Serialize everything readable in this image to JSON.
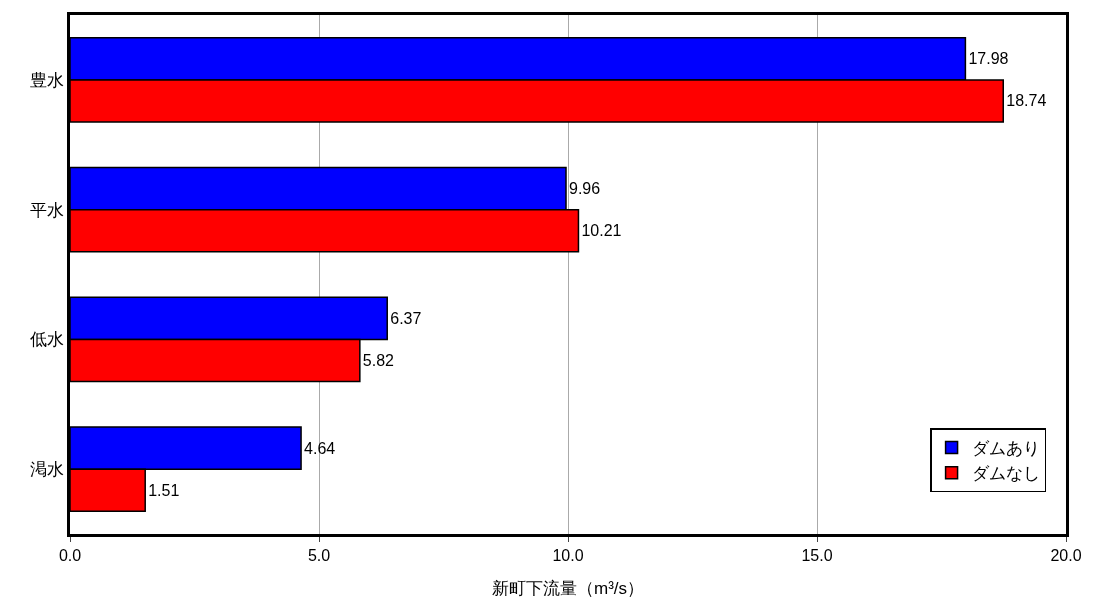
{
  "chart_data": {
    "type": "bar",
    "orientation": "horizontal",
    "xlabel": "新町下流量（m³/s）",
    "categories": [
      "豊水",
      "平水",
      "低水",
      "渇水"
    ],
    "series": [
      {
        "name": "ダムあり",
        "color": "#0000ff",
        "values": [
          17.98,
          9.96,
          6.37,
          4.64
        ]
      },
      {
        "name": "ダムなし",
        "color": "#ff0000",
        "values": [
          18.74,
          10.21,
          5.82,
          1.51
        ]
      }
    ],
    "xlim": [
      0,
      20
    ],
    "xticks": [
      {
        "value": 0,
        "label": "0.0"
      },
      {
        "value": 5,
        "label": "5.0"
      },
      {
        "value": 10,
        "label": "10.0"
      },
      {
        "value": 15,
        "label": "15.0"
      },
      {
        "value": 20,
        "label": "20.0"
      }
    ],
    "grid": "x",
    "legend": "bottom right",
    "data_labels": true
  }
}
